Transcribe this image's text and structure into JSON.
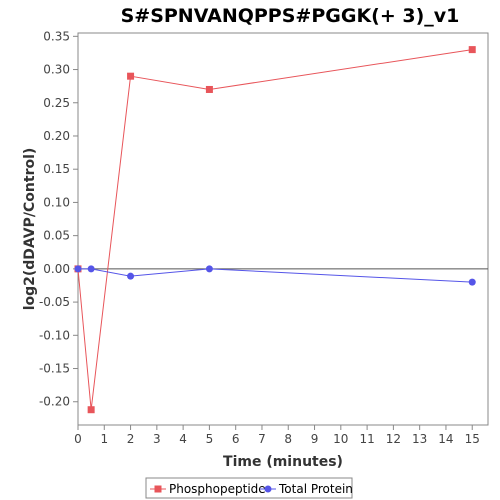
{
  "chart_data": {
    "type": "line",
    "title": "S#SPNVANQPPS#PGGK(+ 3)_v1",
    "xlabel": "Time (minutes)",
    "ylabel": "log2(dDAVP/Control)",
    "xlim": [
      0,
      15.6
    ],
    "ylim": [
      -0.235,
      0.355
    ],
    "xticks": [
      0,
      1,
      2,
      3,
      4,
      5,
      6,
      7,
      8,
      9,
      10,
      11,
      12,
      13,
      14,
      15
    ],
    "yticks": [
      -0.2,
      -0.15,
      -0.1,
      -0.05,
      0.0,
      0.05,
      0.1,
      0.15,
      0.2,
      0.25,
      0.3,
      0.35
    ],
    "ytick_labels": [
      "-0.20",
      "-0.15",
      "-0.10",
      "-0.05",
      "0.00",
      "0.05",
      "0.10",
      "0.15",
      "0.20",
      "0.25",
      "0.30",
      "0.35"
    ],
    "grid": false,
    "reference_line_y": 0,
    "legend_position": "bottom",
    "series": [
      {
        "name": "Phosphopeptide",
        "color": "#e8555a",
        "marker": "square",
        "x": [
          0,
          0.5,
          2,
          5,
          15
        ],
        "y": [
          0.0,
          -0.212,
          0.29,
          0.27,
          0.33
        ]
      },
      {
        "name": "Total Protein",
        "color": "#5555e8",
        "marker": "circle",
        "x": [
          0,
          0.5,
          2,
          5,
          15
        ],
        "y": [
          0.0,
          0.0,
          -0.011,
          0.0,
          -0.02
        ]
      }
    ]
  }
}
